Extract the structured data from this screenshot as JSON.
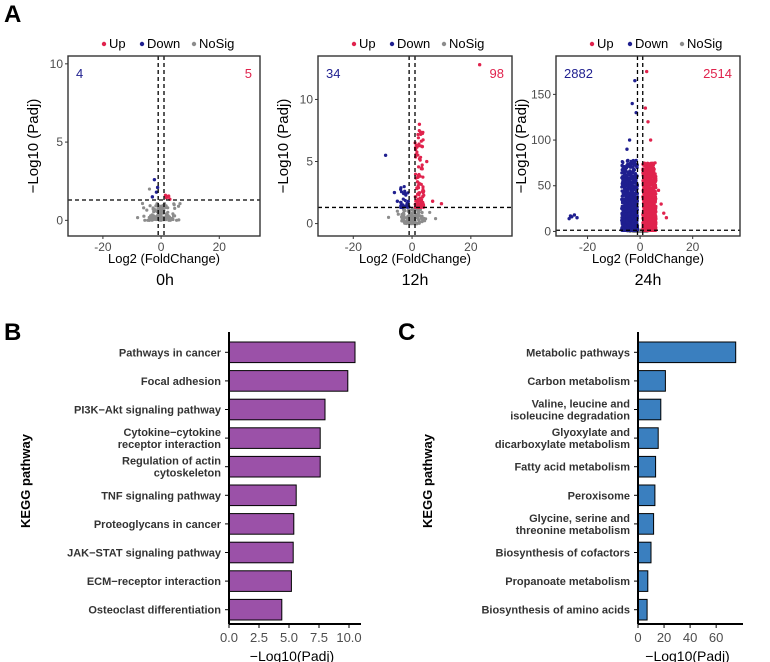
{
  "panel_labels": {
    "a": "A",
    "b": "B",
    "c": "C"
  },
  "colors": {
    "up": "#e0234d",
    "down": "#1f1f8f",
    "nosig": "#8c8c8c",
    "purple": "#9b51a8",
    "blue": "#3a7fbf"
  },
  "legend": {
    "up": "Up",
    "down": "Down",
    "nosig": "NoSig"
  },
  "chart_data": [
    {
      "type": "scatter",
      "name": "volcano-0h",
      "title": "0h",
      "xlabel": "Log2 (FoldChange)",
      "ylabel": "−Log10 (Padj)",
      "xlim": [
        -32,
        34
      ],
      "ylim": [
        -1,
        10.5
      ],
      "xticks": [
        -20,
        0,
        20
      ],
      "yticks": [
        0,
        5,
        10
      ],
      "fc_threshold": [
        -1,
        1
      ],
      "padj_threshold": 1.3,
      "down_count": "4",
      "up_count": "5",
      "series": [
        {
          "name": "Up",
          "points": [
            [
              1.5,
              1.6
            ],
            [
              2.1,
              1.5
            ],
            [
              3.0,
              1.35
            ],
            [
              1.8,
              1.45
            ],
            [
              2.6,
              1.55
            ]
          ]
        },
        {
          "name": "Down",
          "points": [
            [
              -2.3,
              2.6
            ],
            [
              -1.6,
              1.8
            ],
            [
              -3.0,
              1.5
            ],
            [
              -1.2,
              2.1
            ]
          ]
        },
        {
          "name": "NoSig",
          "n": 110,
          "xsd": 2.5,
          "ymax": 1.1,
          "extra": [
            [
              -4,
              2.0
            ],
            [
              4.5,
              1.0
            ],
            [
              -6,
              0.8
            ],
            [
              6,
              0.9
            ]
          ]
        }
      ]
    },
    {
      "type": "scatter",
      "name": "volcano-12h",
      "title": "12h",
      "xlabel": "Log2 (FoldChange)",
      "ylabel": "−Log10 (Padj)",
      "xlim": [
        -32,
        34
      ],
      "ylim": [
        -1,
        13.5
      ],
      "xticks": [
        -20,
        0,
        20
      ],
      "yticks": [
        0,
        5,
        10
      ],
      "fc_threshold": [
        -1,
        1
      ],
      "padj_threshold": 1.3,
      "down_count": "34",
      "up_count": "98",
      "series": [
        {
          "name": "Up",
          "n": 98,
          "xmin": 1,
          "xmax": 4,
          "ymin": 1.3,
          "ymax": 7.5,
          "extra": [
            [
              23,
              12.8
            ],
            [
              10,
              1.6
            ],
            [
              7,
              1.8
            ],
            [
              5,
              5.0
            ],
            [
              3.5,
              6.2
            ],
            [
              2.5,
              8.0
            ]
          ]
        },
        {
          "name": "Down",
          "n": 34,
          "xmin": -4,
          "xmax": -1,
          "ymin": 1.3,
          "ymax": 3.0,
          "extra": [
            [
              -9,
              5.5
            ],
            [
              -6,
              2.5
            ],
            [
              -5,
              1.8
            ]
          ]
        },
        {
          "name": "NoSig",
          "n": 160,
          "xsd": 2.0,
          "ymax": 1.2,
          "extra": [
            [
              -5,
              1.0
            ],
            [
              6,
              0.9
            ],
            [
              -8,
              0.5
            ],
            [
              8,
              0.4
            ]
          ]
        }
      ]
    },
    {
      "type": "scatter",
      "name": "volcano-24h",
      "title": "24h",
      "xlabel": "Log2 (FoldChange)",
      "ylabel": "−Log10 (Padj)",
      "xlim": [
        -32,
        38
      ],
      "ylim": [
        -5,
        192
      ],
      "xticks": [
        -20,
        0,
        20
      ],
      "yticks": [
        0,
        50,
        100,
        150
      ],
      "fc_threshold": [
        -1,
        1
      ],
      "padj_threshold": 1.3,
      "down_count": "2882",
      "up_count": "2514",
      "series": [
        {
          "name": "Up",
          "n": 850,
          "xmin": 1,
          "xmax": 6,
          "ymin": 1.3,
          "ymax": 75,
          "extra": [
            [
              2,
              135
            ],
            [
              3,
              120
            ],
            [
              4,
              100
            ],
            [
              2.5,
              175
            ],
            [
              8,
              30
            ],
            [
              9,
              20
            ],
            [
              7,
              45
            ],
            [
              10,
              15
            ]
          ]
        },
        {
          "name": "Down",
          "n": 850,
          "xmin": -7,
          "xmax": -1,
          "ymin": 1.3,
          "ymax": 78,
          "extra": [
            [
              -26,
              16
            ],
            [
              -25,
              18
            ],
            [
              -27,
              14
            ],
            [
              -24,
              15
            ],
            [
              -26.5,
              17
            ],
            [
              -2,
              165
            ],
            [
              -3,
              140
            ],
            [
              -4,
              100
            ],
            [
              -5,
              90
            ],
            [
              -1.5,
              130
            ]
          ]
        },
        {
          "name": "NoSig",
          "n": 140,
          "xsd": 1.5,
          "ymax": 1.3,
          "extra": []
        }
      ]
    },
    {
      "type": "bar",
      "orientation": "horizontal",
      "name": "kegg-bars-b",
      "ylabel": "KEGG pathway",
      "xlabel": "−Log10(Padj)",
      "xlim": [
        0,
        10.5
      ],
      "xticks": [
        "0.0",
        "2.5",
        "5.0",
        "7.5",
        "10.0"
      ],
      "categories": [
        "Pathways in cancer",
        "Focal adhesion",
        "PI3K−Akt signaling pathway",
        "Cytokine−cytokine receptor interaction",
        "Regulation of actin cytoskeleton",
        "TNF signaling pathway",
        "Proteoglycans in cancer",
        "JAK−STAT signaling pathway",
        "ECM−receptor interaction",
        "Osteoclast differentiation"
      ],
      "labels": [
        [
          "Pathways in cancer"
        ],
        [
          "Focal adhesion"
        ],
        [
          "PI3K−Akt signaling pathway"
        ],
        [
          "Cytokine−cytokine",
          "receptor interaction"
        ],
        [
          "Regulation of actin",
          "cytoskeleton"
        ],
        [
          "TNF signaling pathway"
        ],
        [
          "Proteoglycans in cancer"
        ],
        [
          "JAK−STAT signaling pathway"
        ],
        [
          "ECM−receptor interaction"
        ],
        [
          "Osteoclast differentiation"
        ]
      ],
      "values": [
        10.5,
        9.9,
        8.0,
        7.6,
        7.6,
        5.6,
        5.4,
        5.35,
        5.2,
        4.4
      ]
    },
    {
      "type": "bar",
      "orientation": "horizontal",
      "name": "kegg-bars-c",
      "ylabel": "KEGG pathway",
      "xlabel": "−Log10(Padj)",
      "xlim": [
        0,
        76
      ],
      "xticks": [
        "0",
        "20",
        "40",
        "60"
      ],
      "categories": [
        "Metabolic pathways",
        "Carbon metabolism",
        "Valine, leucine and isoleucine degradation",
        "Glyoxylate and dicarboxylate metabolism",
        "Fatty acid metabolism",
        "Peroxisome",
        "Glycine, serine and threonine metabolism",
        "Biosynthesis of cofactors",
        "Propanoate metabolism",
        "Biosynthesis of amino acids"
      ],
      "labels": [
        [
          "Metabolic pathways"
        ],
        [
          "Carbon metabolism"
        ],
        [
          "Valine, leucine and",
          "isoleucine degradation"
        ],
        [
          "Glyoxylate and",
          "dicarboxylate metabolism"
        ],
        [
          "Fatty acid metabolism"
        ],
        [
          "Peroxisome"
        ],
        [
          "Glycine, serine and",
          "threonine metabolism"
        ],
        [
          "Biosynthesis of cofactors"
        ],
        [
          "Propanoate metabolism"
        ],
        [
          "Biosynthesis of amino acids"
        ]
      ],
      "values": [
        75,
        21,
        17.5,
        15.5,
        13.5,
        13,
        12,
        10,
        7.5,
        7
      ]
    }
  ]
}
